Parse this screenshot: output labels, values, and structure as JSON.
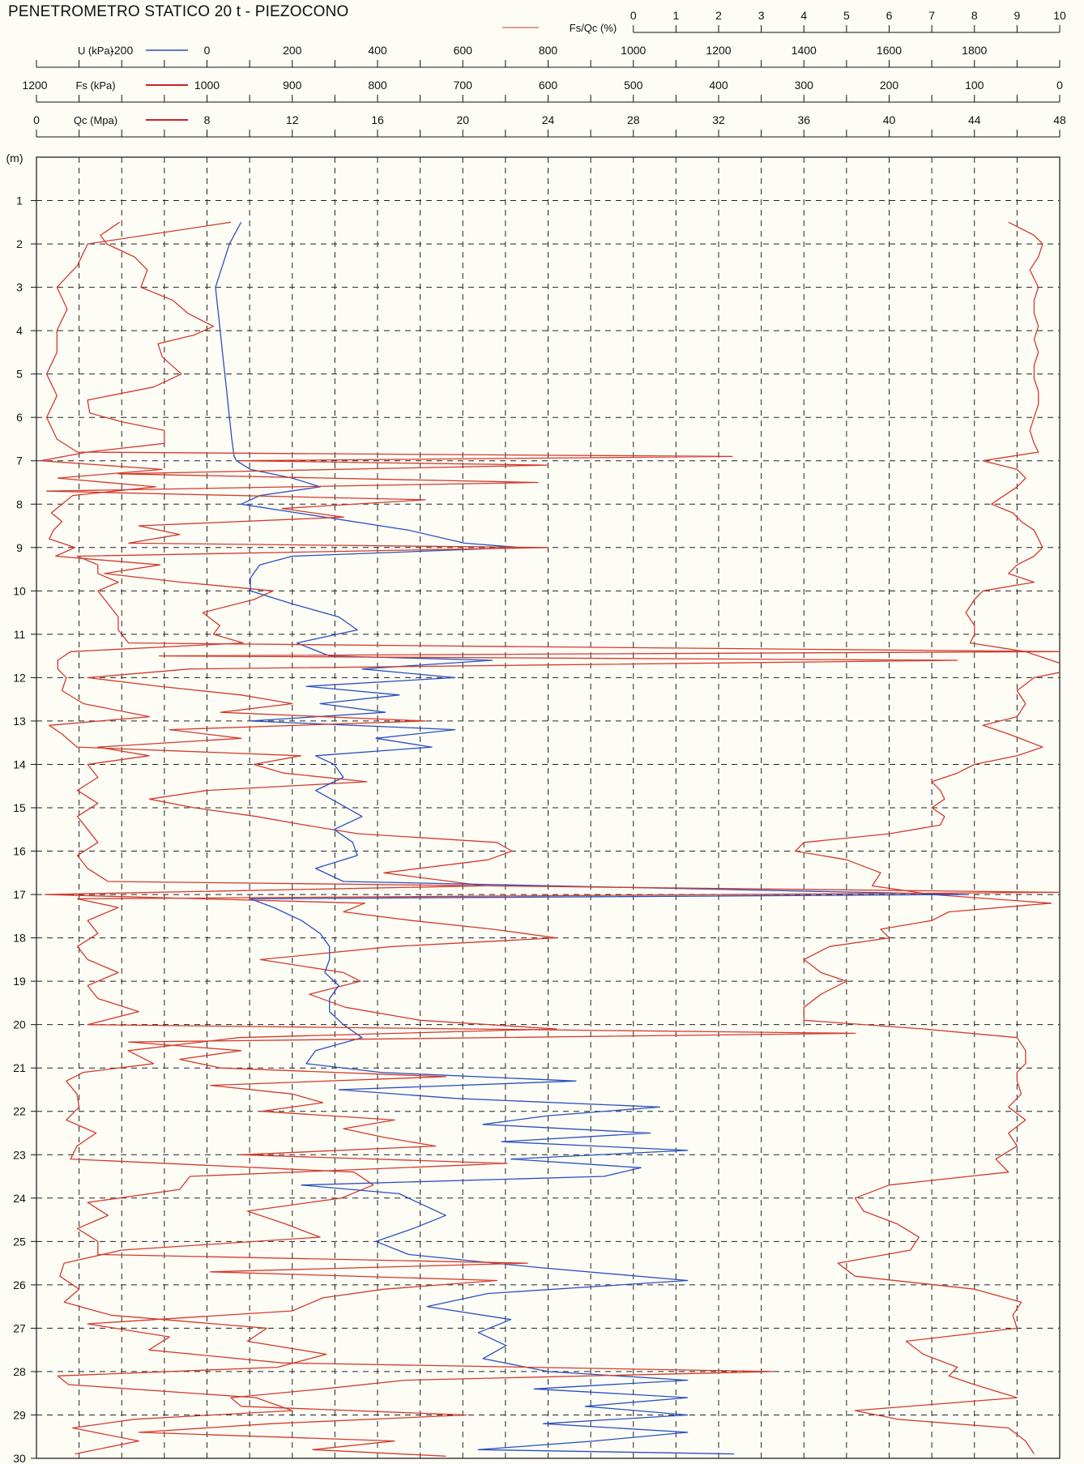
{
  "title": "PENETROMETRO STATICO 20 t - PIEZOCONO",
  "chart_data": {
    "type": "line",
    "title": "PENETROMETRO STATICO 20 t - PIEZOCONO",
    "depth_unit_label": "(m)",
    "depth_range": [
      0,
      30
    ],
    "depth_ticks": [
      "1",
      "2",
      "3",
      "4",
      "5",
      "6",
      "7",
      "8",
      "9",
      "10",
      "11",
      "12",
      "13",
      "14",
      "15",
      "16",
      "17",
      "18",
      "19",
      "20",
      "21",
      "22",
      "23",
      "24",
      "25",
      "26",
      "27",
      "28",
      "29",
      "30"
    ],
    "grid": true,
    "axes": [
      {
        "key": "fsqc",
        "name": "Fs/Qc (%)",
        "color": "#c0392b",
        "range": [
          0,
          10
        ],
        "ticks": [
          "0",
          "1",
          "2",
          "3",
          "4",
          "5",
          "6",
          "7",
          "8",
          "9",
          "10"
        ]
      },
      {
        "key": "u",
        "name": "U (kPa)",
        "color": "#2a4fbf",
        "range": [
          -400,
          1800
        ],
        "ticks": [
          "-200",
          "0",
          "200",
          "400",
          "600",
          "800",
          "1000",
          "1200",
          "1400",
          "1600",
          "1800"
        ]
      },
      {
        "key": "fs",
        "name": "Fs (kPa)",
        "color": "#cc2222",
        "range": [
          1200,
          0
        ],
        "ticks": [
          "1200",
          "1000",
          "900",
          "800",
          "700",
          "600",
          "500",
          "400",
          "300",
          "200",
          "100",
          "0"
        ]
      },
      {
        "key": "qc",
        "name": "Qc (Mpa)",
        "color": "#cc2222",
        "range": [
          0,
          48
        ],
        "ticks": [
          "0",
          "8",
          "12",
          "16",
          "20",
          "24",
          "28",
          "32",
          "36",
          "40",
          "44",
          "48"
        ]
      }
    ],
    "series": [
      {
        "name": "Qc (Mpa)",
        "axis": "qc",
        "color": "#d33a2c",
        "depth": [
          1.5,
          1.8,
          2.0,
          2.3,
          2.6,
          3.0,
          3.3,
          3.6,
          3.9,
          4.1,
          4.3,
          4.6,
          5.0,
          5.3,
          5.6,
          5.9,
          6.1,
          6.3,
          6.6,
          6.8,
          7.0,
          7.2,
          7.4,
          7.6,
          7.8,
          8.0,
          8.2,
          8.4,
          8.6,
          8.8,
          9.0,
          9.2,
          9.4,
          9.6,
          9.8,
          10.0,
          10.2,
          10.5,
          10.8,
          11.0,
          11.2,
          11.4,
          11.6,
          11.8,
          12.0,
          12.3,
          12.6,
          12.9,
          13.1,
          13.3,
          13.6,
          13.8,
          14.0,
          14.2,
          14.4,
          14.6,
          14.8,
          15.0,
          15.2,
          15.4,
          15.6,
          15.8,
          16.0,
          16.2,
          16.5,
          16.8,
          17.0,
          17.2,
          17.4,
          17.6,
          17.8,
          18.0,
          18.2,
          18.5,
          18.8,
          19.0,
          19.3,
          19.6,
          19.9,
          20.1,
          20.3,
          20.6,
          20.9,
          21.1,
          21.3,
          21.6,
          21.9,
          22.2,
          22.5,
          22.8,
          23.1,
          23.4,
          23.7,
          24.0,
          24.3,
          24.6,
          24.9,
          25.2,
          25.5,
          25.8,
          26.1,
          26.4,
          26.7,
          27.0,
          27.3,
          27.6,
          27.9,
          28.1,
          28.3,
          28.6,
          28.9,
          29.1,
          29.3,
          29.6,
          29.9
        ],
        "values": [
          3.9,
          3.0,
          3.3,
          4.6,
          5.2,
          4.9,
          6.4,
          7.1,
          8.3,
          7.4,
          5.7,
          5.9,
          6.8,
          5.5,
          2.4,
          2.5,
          4.0,
          6.0,
          6.0,
          2.4,
          0.2,
          5.9,
          1.0,
          5.6,
          1.7,
          1.2,
          0.7,
          1.2,
          0.8,
          0.6,
          1.8,
          0.9,
          5.8,
          3.2,
          6.8,
          11.1,
          10.2,
          7.8,
          8.6,
          8.3,
          9.7,
          1.6,
          1.0,
          1.0,
          1.4,
          1.2,
          2.2,
          5.3,
          0.6,
          1.2,
          1.9,
          12.4,
          10.2,
          11.6,
          15.5,
          8.0,
          5.3,
          7.4,
          10.3,
          12.6,
          15.1,
          21.6,
          22.3,
          21.2,
          16.3,
          21.0,
          0.4,
          15.4,
          14.4,
          17.6,
          21.4,
          24.4,
          16.7,
          10.5,
          14.4,
          15.2,
          12.8,
          14.5,
          18.0,
          24.4,
          9.5,
          4.3,
          5.5,
          2.2,
          1.4,
          1.9,
          2.0,
          1.4,
          2.8,
          1.9,
          1.6,
          14.9,
          15.8,
          14.3,
          9.9,
          11.7,
          13.3,
          4.0,
          1.3,
          1.1,
          2.0,
          1.3,
          3.5,
          10.8,
          9.9,
          13.6,
          11.3,
          1.0,
          1.5,
          10.3,
          12.0,
          4.6,
          1.7,
          4.8,
          1.8
        ]
      },
      {
        "name": "Fs (kPa)",
        "axis": "fs",
        "color": "#d33a2c",
        "depth": [
          1.5,
          1.8,
          2.0,
          2.3,
          2.6,
          3.0,
          3.3,
          3.6,
          3.9,
          4.2,
          4.5,
          4.8,
          5.1,
          5.4,
          5.7,
          6.0,
          6.3,
          6.6,
          6.8,
          7.0,
          7.2,
          7.4,
          7.6,
          7.8,
          8.0,
          8.2,
          8.4,
          8.6,
          8.8,
          9.0,
          9.2,
          9.4,
          9.6,
          9.8,
          10.0,
          10.2,
          10.5,
          10.8,
          11.0,
          11.2,
          11.4,
          11.6,
          11.8,
          12.0,
          12.3,
          12.6,
          12.9,
          13.1,
          13.3,
          13.6,
          13.8,
          14.0,
          14.2,
          14.4,
          14.6,
          14.8,
          15.0,
          15.2,
          15.4,
          15.6,
          15.8,
          16.0,
          16.2,
          16.5,
          16.8,
          17.0,
          17.2,
          17.4,
          17.6,
          17.8,
          18.0,
          18.2,
          18.5,
          18.8,
          19.0,
          19.3,
          19.6,
          19.9,
          20.1,
          20.3,
          20.6,
          20.9,
          21.1,
          21.3,
          21.6,
          21.9,
          22.2,
          22.5,
          22.8,
          23.1,
          23.4,
          23.7,
          24.0,
          24.3,
          24.6,
          24.9,
          25.2,
          25.5,
          25.8,
          26.1,
          26.4,
          26.7,
          27.0,
          27.3,
          27.6,
          27.9,
          28.1,
          28.3,
          28.6,
          28.9,
          29.1,
          29.3,
          29.6,
          29.9
        ],
        "values": [
          60,
          30,
          20,
          25,
          35,
          25,
          30,
          30,
          25,
          30,
          25,
          30,
          30,
          25,
          25,
          30,
          35,
          30,
          25,
          90,
          50,
          40,
          50,
          65,
          80,
          55,
          45,
          30,
          25,
          20,
          30,
          50,
          60,
          30,
          90,
          100,
          110,
          100,
          100,
          105,
          40,
          10,
          -20,
          30,
          50,
          40,
          50,
          90,
          60,
          20,
          50,
          100,
          120,
          150,
          140,
          135,
          150,
          135,
          140,
          200,
          300,
          310,
          250,
          210,
          220,
          150,
          10,
          130,
          150,
          210,
          200,
          270,
          300,
          280,
          250,
          280,
          300,
          300,
          160,
          50,
          40,
          40,
          50,
          50,
          45,
          60,
          40,
          60,
          50,
          75,
          60,
          200,
          240,
          230,
          190,
          165,
          175,
          260,
          240,
          100,
          45,
          55,
          50,
          180,
          160,
          120,
          130,
          100,
          50,
          240,
          190,
          60,
          40,
          30,
          50
        ]
      },
      {
        "name": "U (kPa)",
        "axis": "u",
        "color": "#2a4fbf",
        "depth": [
          1.5,
          2.0,
          2.5,
          3.0,
          3.5,
          4.0,
          4.5,
          5.0,
          5.5,
          6.0,
          6.5,
          6.9,
          7.0,
          7.2,
          7.4,
          7.6,
          7.8,
          8.0,
          8.3,
          8.6,
          8.9,
          9.0,
          9.2,
          9.4,
          9.7,
          10.0,
          10.3,
          10.6,
          10.9,
          11.2,
          11.5,
          11.6,
          11.8,
          12.0,
          12.2,
          12.4,
          12.6,
          12.8,
          13.0,
          13.2,
          13.4,
          13.6,
          13.8,
          14.0,
          14.3,
          14.6,
          14.9,
          15.2,
          15.5,
          15.8,
          16.1,
          16.4,
          16.7,
          17.0,
          17.1,
          17.3,
          17.6,
          17.9,
          18.2,
          18.5,
          18.8,
          19.1,
          19.4,
          19.7,
          20.0,
          20.3,
          20.6,
          20.9,
          21.1,
          21.3,
          21.5,
          21.7,
          21.9,
          22.1,
          22.3,
          22.5,
          22.7,
          22.9,
          23.1,
          23.3,
          23.5,
          23.7,
          23.9,
          24.1,
          24.4,
          24.7,
          25.0,
          25.3,
          25.6,
          25.9,
          26.2,
          26.5,
          26.8,
          27.1,
          27.4,
          27.7,
          28.0,
          28.2,
          28.4,
          28.6,
          28.8,
          29.0,
          29.2,
          29.4,
          29.6,
          29.8,
          29.9
        ],
        "values": [
          40,
          15,
          0,
          -15,
          -10,
          -5,
          0,
          5,
          10,
          15,
          20,
          25,
          30,
          60,
          150,
          210,
          80,
          40,
          220,
          400,
          520,
          640,
          150,
          80,
          60,
          60,
          150,
          250,
          290,
          160,
          230,
          580,
          300,
          500,
          180,
          380,
          210,
          350,
          60,
          500,
          330,
          450,
          200,
          240,
          260,
          200,
          250,
          300,
          240,
          280,
          290,
          200,
          260,
          1600,
          60,
          110,
          170,
          210,
          230,
          230,
          220,
          250,
          230,
          230,
          260,
          300,
          200,
          180,
          340,
          760,
          250,
          500,
          940,
          700,
          560,
          920,
          600,
          1000,
          620,
          900,
          820,
          170,
          380,
          420,
          480,
          410,
          330,
          400,
          680,
          1000,
          570,
          440,
          620,
          550,
          610,
          560,
          700,
          1000,
          670,
          1000,
          780,
          1000,
          690,
          1000,
          800,
          550,
          1100
        ]
      },
      {
        "name": "Fs/Qc (%)",
        "axis": "fsqc",
        "color": "#d33a2c",
        "depth": [
          1.5,
          2.0,
          2.5,
          3.0,
          3.5,
          4.0,
          4.5,
          5.0,
          5.5,
          6.0,
          6.5,
          6.8,
          6.9,
          7.0,
          7.1,
          7.3,
          7.5,
          7.7,
          7.9,
          8.1,
          8.3,
          8.5,
          8.7,
          8.9,
          9.0,
          9.2,
          9.4,
          9.6,
          9.8,
          10.0,
          10.3,
          10.6,
          10.9,
          11.2,
          11.4,
          11.5,
          11.6,
          11.8,
          12.0,
          12.2,
          12.4,
          12.6,
          12.8,
          13.0,
          13.2,
          13.4,
          13.6,
          13.8,
          14.0,
          14.3,
          14.6,
          14.9,
          15.2,
          15.5,
          15.8,
          16.1,
          16.4,
          16.7,
          16.95,
          17.1,
          17.3,
          17.6,
          17.9,
          18.2,
          18.5,
          18.8,
          19.1,
          19.4,
          19.7,
          20.0,
          20.2,
          20.4,
          20.6,
          20.8,
          21.0,
          21.2,
          21.4,
          21.6,
          21.8,
          22.0,
          22.2,
          22.4,
          22.6,
          22.8,
          23.0,
          23.2,
          23.5,
          23.8,
          24.1,
          24.4,
          24.7,
          25.0,
          25.3,
          25.5,
          25.7,
          25.9,
          26.1,
          26.3,
          26.6,
          26.9,
          27.2,
          27.5,
          27.8,
          28.0,
          28.2,
          28.4,
          28.6,
          28.8,
          29.0,
          29.2,
          29.4,
          29.6,
          29.8,
          29.95
        ],
        "values": [
          1.9,
          0.5,
          0.4,
          0.2,
          0.3,
          0.2,
          0.2,
          0.1,
          0.2,
          0.1,
          0.2,
          0.4,
          6.8,
          2.0,
          5.0,
          0.8,
          4.9,
          0.1,
          3.8,
          2.4,
          3.0,
          1.0,
          1.4,
          0.9,
          5.0,
          0.4,
          0.6,
          0.6,
          0.8,
          0.6,
          0.7,
          0.8,
          0.8,
          0.9,
          10.0,
          1.2,
          9.0,
          1.5,
          0.5,
          1.2,
          2.0,
          2.5,
          1.8,
          3.8,
          1.3,
          2.0,
          0.6,
          1.1,
          0.5,
          0.6,
          0.4,
          0.6,
          0.4,
          0.5,
          0.6,
          0.4,
          0.5,
          0.7,
          10.0,
          0.4,
          0.8,
          0.5,
          0.6,
          0.4,
          0.5,
          0.8,
          0.5,
          0.6,
          1.0,
          0.5,
          8.0,
          0.9,
          2.0,
          1.4,
          1.8,
          4.0,
          1.7,
          2.5,
          2.8,
          2.2,
          3.5,
          3.0,
          3.4,
          3.9,
          2.0,
          4.6,
          1.5,
          1.4,
          0.5,
          0.7,
          0.4,
          0.6,
          0.6,
          4.8,
          1.7,
          4.5,
          3.4,
          2.8,
          2.5,
          0.5,
          1.3,
          1.1,
          2.4,
          7.2,
          3.6,
          2.8,
          1.9,
          2.0,
          4.2,
          2.3,
          1.0,
          3.5,
          2.7,
          4.0
        ]
      }
    ]
  }
}
